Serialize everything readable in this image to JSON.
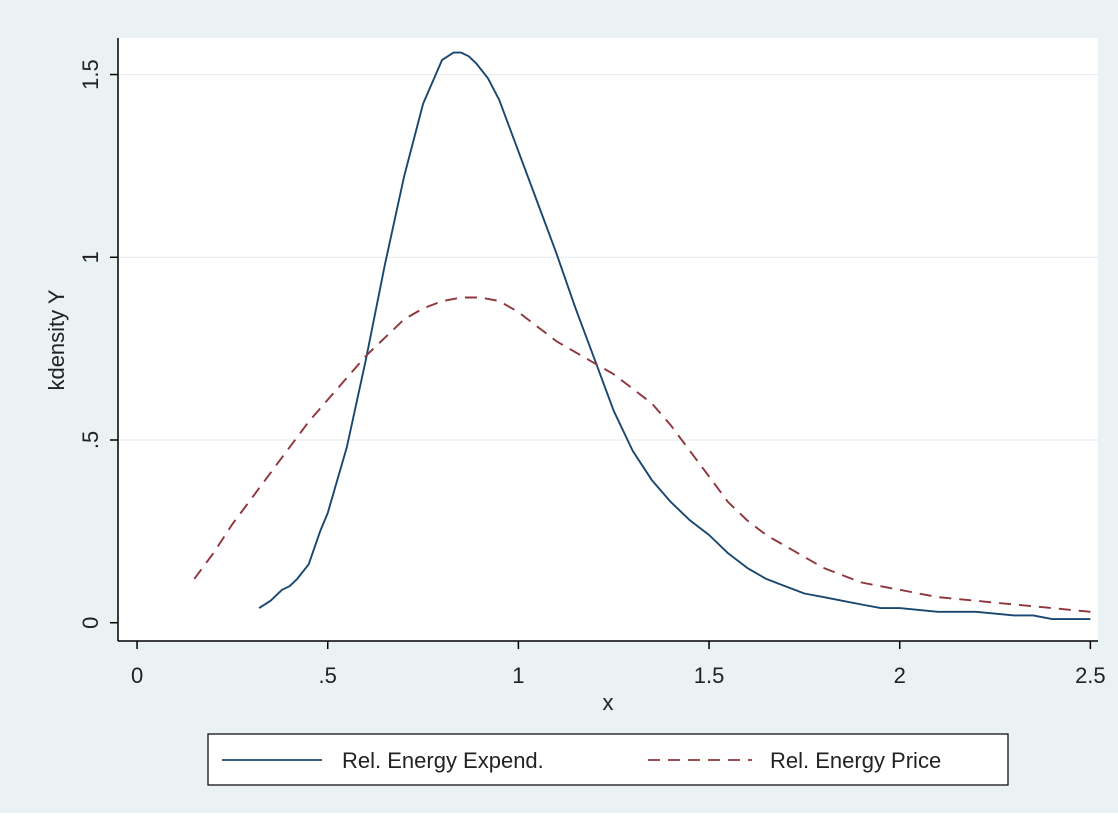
{
  "chart_data": {
    "type": "line",
    "title": "",
    "xlabel": "x",
    "ylabel": "kdensity Y",
    "xlim": [
      -0.05,
      2.52
    ],
    "ylim": [
      -0.05,
      1.6
    ],
    "x_ticks": [
      0,
      0.5,
      1,
      1.5,
      2,
      2.5
    ],
    "x_tick_labels": [
      "0",
      ".5",
      "1",
      "1.5",
      "2",
      "2.5"
    ],
    "y_ticks": [
      0,
      0.5,
      1,
      1.5
    ],
    "y_tick_labels": [
      "0",
      ".5",
      "1",
      "1.5"
    ],
    "grid": "horizontal",
    "legend_position": "bottom",
    "colors": {
      "outer_background": "#eaf2f3",
      "plot_background": "#ffffff",
      "grid": "#e6eeef",
      "axis": "#000000"
    },
    "series": [
      {
        "name": "Rel. Energy Expend.",
        "color": "#1a476f",
        "style": "solid",
        "x": [
          0.32,
          0.35,
          0.38,
          0.4,
          0.42,
          0.45,
          0.48,
          0.5,
          0.55,
          0.6,
          0.65,
          0.7,
          0.75,
          0.8,
          0.83,
          0.85,
          0.87,
          0.89,
          0.92,
          0.95,
          1.0,
          1.05,
          1.1,
          1.15,
          1.2,
          1.25,
          1.3,
          1.35,
          1.4,
          1.45,
          1.5,
          1.55,
          1.6,
          1.65,
          1.7,
          1.75,
          1.8,
          1.85,
          1.9,
          1.95,
          2.0,
          2.1,
          2.2,
          2.3,
          2.35,
          2.4,
          2.5
        ],
        "y": [
          0.04,
          0.06,
          0.09,
          0.1,
          0.12,
          0.16,
          0.25,
          0.3,
          0.48,
          0.72,
          0.98,
          1.22,
          1.42,
          1.54,
          1.56,
          1.56,
          1.55,
          1.53,
          1.49,
          1.43,
          1.29,
          1.15,
          1.01,
          0.86,
          0.72,
          0.58,
          0.47,
          0.39,
          0.33,
          0.28,
          0.24,
          0.19,
          0.15,
          0.12,
          0.1,
          0.08,
          0.07,
          0.06,
          0.05,
          0.04,
          0.04,
          0.03,
          0.03,
          0.02,
          0.02,
          0.01,
          0.01
        ]
      },
      {
        "name": "Rel. Energy Price",
        "color": "#90353b",
        "style": "dashed",
        "x": [
          0.15,
          0.2,
          0.25,
          0.3,
          0.35,
          0.4,
          0.45,
          0.5,
          0.55,
          0.6,
          0.65,
          0.7,
          0.75,
          0.8,
          0.85,
          0.9,
          0.95,
          1.0,
          1.05,
          1.1,
          1.15,
          1.2,
          1.25,
          1.3,
          1.35,
          1.4,
          1.45,
          1.5,
          1.55,
          1.6,
          1.65,
          1.7,
          1.75,
          1.8,
          1.85,
          1.9,
          1.95,
          2.0,
          2.1,
          2.2,
          2.3,
          2.4,
          2.5
        ],
        "y": [
          0.12,
          0.19,
          0.27,
          0.34,
          0.41,
          0.48,
          0.55,
          0.61,
          0.67,
          0.73,
          0.78,
          0.83,
          0.86,
          0.88,
          0.89,
          0.89,
          0.88,
          0.85,
          0.81,
          0.77,
          0.74,
          0.71,
          0.68,
          0.64,
          0.6,
          0.54,
          0.47,
          0.4,
          0.33,
          0.28,
          0.24,
          0.21,
          0.18,
          0.15,
          0.13,
          0.11,
          0.1,
          0.09,
          0.07,
          0.06,
          0.05,
          0.04,
          0.03
        ]
      }
    ]
  }
}
